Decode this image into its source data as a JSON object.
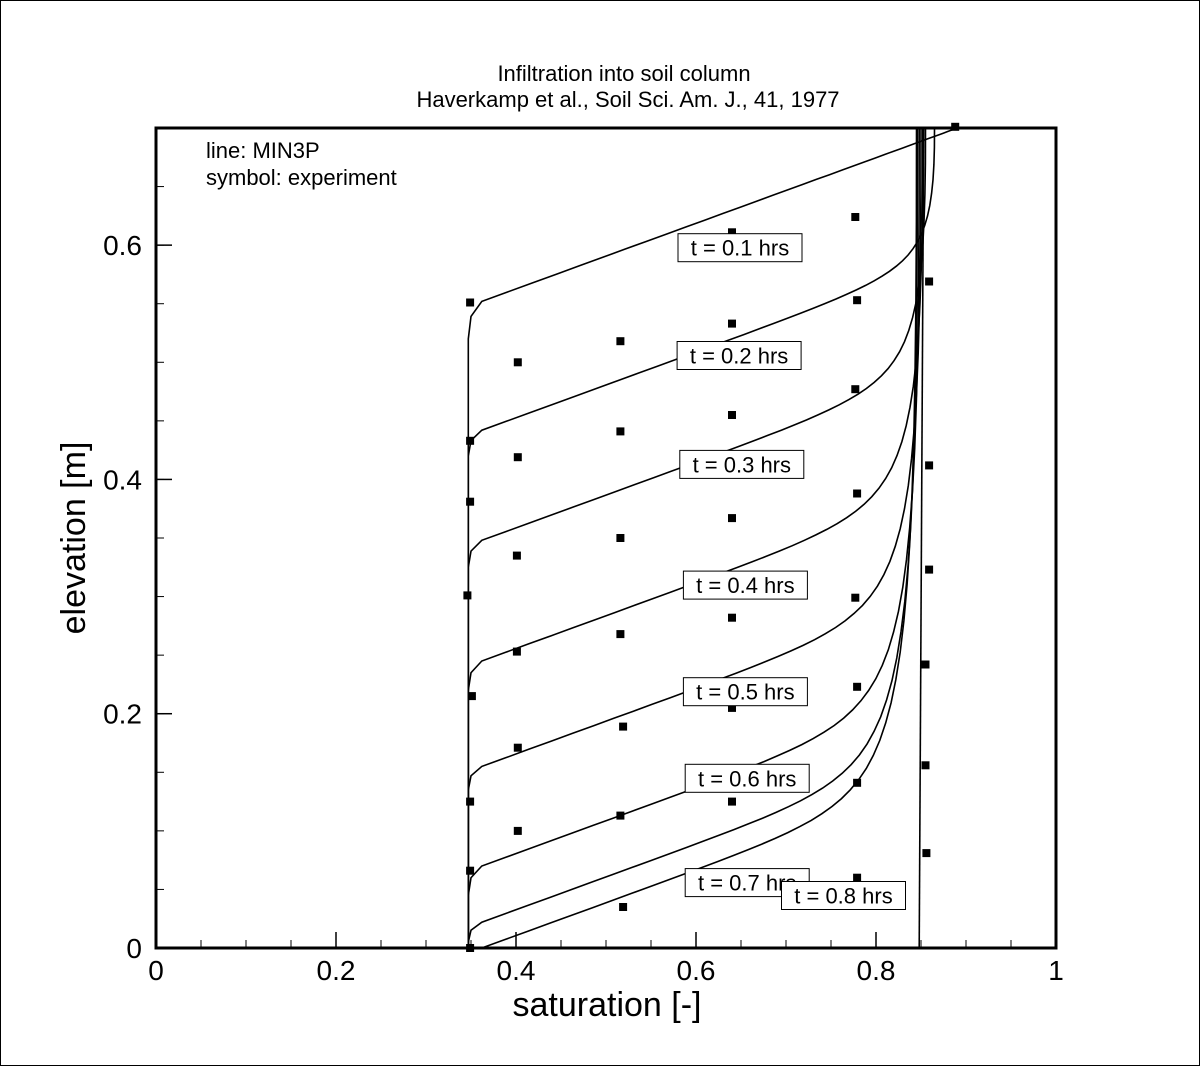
{
  "chart_data": {
    "type": "line",
    "title": "Infiltration into soil column",
    "subtitle": "Haverkamp et al., Soil Sci. Am. J., 41, 1977",
    "xlabel": "saturation [-]",
    "ylabel": "elevation [m]",
    "xlim": [
      0,
      1
    ],
    "ylim": [
      0,
      0.7
    ],
    "x_ticks": [
      {
        "value": 0,
        "label": "0"
      },
      {
        "value": 0.2,
        "label": "0.2"
      },
      {
        "value": 0.4,
        "label": "0.4"
      },
      {
        "value": 0.6,
        "label": "0.6"
      },
      {
        "value": 0.8,
        "label": "0.8"
      },
      {
        "value": 1,
        "label": "1"
      }
    ],
    "y_ticks": [
      {
        "value": 0,
        "label": "0"
      },
      {
        "value": 0.2,
        "label": "0.2"
      },
      {
        "value": 0.4,
        "label": "0.4"
      },
      {
        "value": 0.6,
        "label": "0.6"
      }
    ],
    "x_minor_step": 0.05,
    "y_minor_step": 0.05,
    "grid": false,
    "legend_notes": [
      "line: MIN3P",
      "symbol: experiment"
    ],
    "legend_placement": "top-left",
    "series": [
      {
        "label": "t = 0.1 hrs",
        "label_pos": [
          0.58,
          0.591
        ],
        "front_y": 0.52,
        "front_top": 0.552,
        "crest_s": 0.89,
        "crest_y": 0.7
      },
      {
        "label": "t = 0.2 hrs",
        "label_pos": [
          0.579,
          0.499
        ],
        "front_y": 0.42,
        "front_top": 0.442,
        "crest_s": 0.865,
        "crest_y": 0.7
      },
      {
        "label": "t = 0.3 hrs",
        "label_pos": [
          0.582,
          0.406
        ],
        "front_y": 0.325,
        "front_top": 0.348,
        "crest_s": 0.855,
        "crest_y": 0.7
      },
      {
        "label": "t = 0.4 hrs",
        "label_pos": [
          0.586,
          0.303
        ],
        "front_y": 0.22,
        "front_top": 0.245,
        "crest_s": 0.852,
        "crest_y": 0.7
      },
      {
        "label": "t = 0.5 hrs",
        "label_pos": [
          0.586,
          0.212
        ],
        "front_y": 0.135,
        "front_top": 0.155,
        "crest_s": 0.85,
        "crest_y": 0.7
      },
      {
        "label": "t = 0.6 hrs",
        "label_pos": [
          0.588,
          0.138
        ],
        "front_y": 0.045,
        "front_top": 0.07,
        "crest_s": 0.848,
        "crest_y": 0.7
      },
      {
        "label": "t = 0.7 hrs",
        "label_pos": [
          0.588,
          0.049
        ],
        "front_y": 0.005,
        "front_top": 0.022,
        "crest_s": 0.846,
        "crest_y": 0.7
      },
      {
        "label": "t = 0.8 hrs",
        "label_pos": [
          0.695,
          0.038
        ],
        "front_y": 0.0,
        "front_top": 0.0,
        "crest_s": 0.845,
        "crest_y": 0.7
      }
    ],
    "experiment": {
      "x": [
        0.349,
        0.349,
        0.349,
        0.346,
        0.351,
        0.349,
        0.349,
        0.349,
        0.402,
        0.402,
        0.401,
        0.401,
        0.402,
        0.402,
        0.516,
        0.516,
        0.516,
        0.516,
        0.519,
        0.516,
        0.519,
        0.64,
        0.64,
        0.64,
        0.64,
        0.64,
        0.64,
        0.64,
        0.64,
        0.64,
        0.777,
        0.779,
        0.777,
        0.779,
        0.777,
        0.779,
        0.779,
        0.779,
        0.888,
        0.859,
        0.859,
        0.859,
        0.855,
        0.855,
        0.856
      ],
      "y": [
        0.551,
        0.433,
        0.381,
        0.301,
        0.215,
        0.125,
        0.066,
        0.0,
        0.5,
        0.419,
        0.335,
        0.253,
        0.171,
        0.1,
        0.518,
        0.441,
        0.35,
        0.268,
        0.189,
        0.113,
        0.035,
        0.611,
        0.533,
        0.455,
        0.367,
        0.282,
        0.205,
        0.125,
        0.047,
        0.597,
        0.624,
        0.553,
        0.477,
        0.388,
        0.299,
        0.223,
        0.141,
        0.06,
        0.701,
        0.569,
        0.412,
        0.323,
        0.242,
        0.156,
        0.081
      ]
    }
  }
}
